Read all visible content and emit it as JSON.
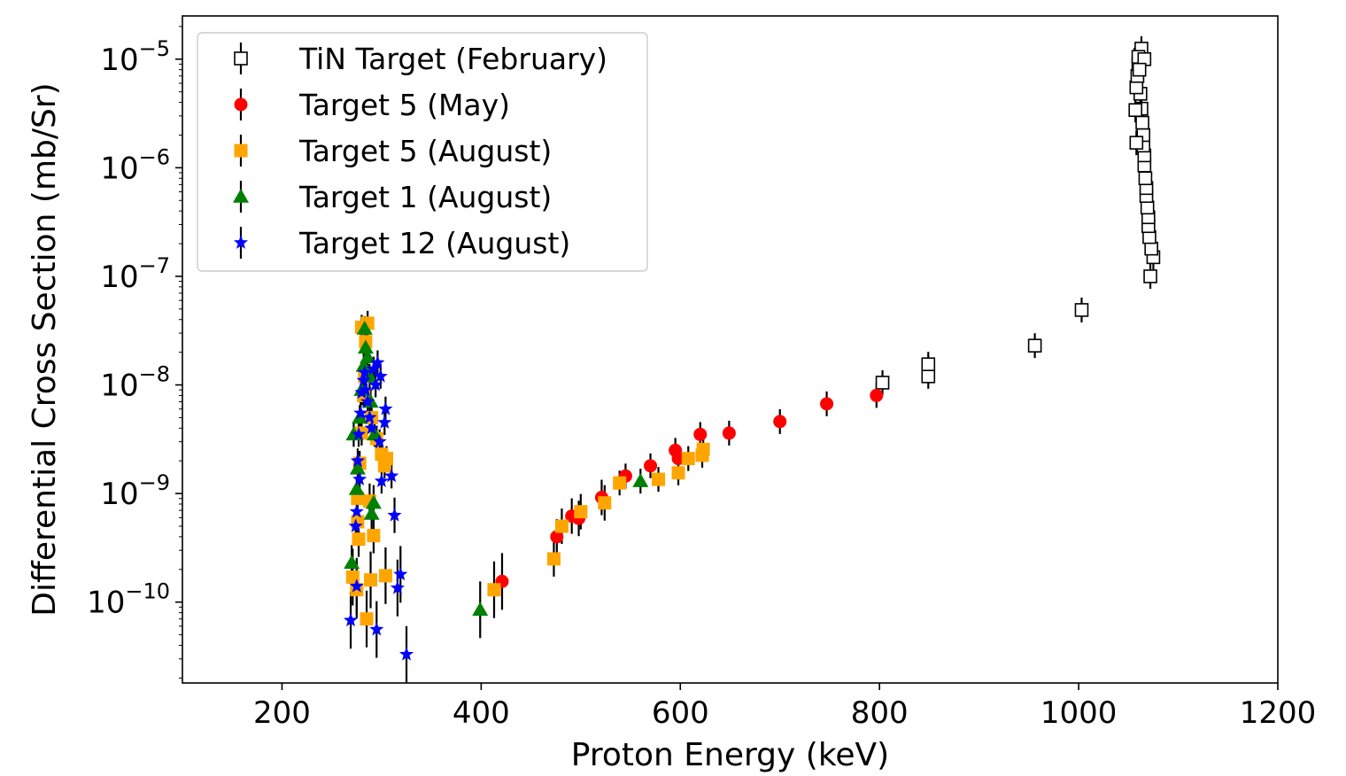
{
  "chart_data": {
    "type": "scatter",
    "xlabel": "Proton Energy (keV)",
    "ylabel": "Differential Cross Section (mb/Sr)",
    "xlim": [
      100,
      1200
    ],
    "ylim": [
      1.8e-11,
      2.5e-05
    ],
    "yscale": "log",
    "x_ticks": [
      200,
      400,
      600,
      800,
      1000,
      1200
    ],
    "x_tick_labels": [
      "200",
      "400",
      "600",
      "800",
      "1000",
      "1200"
    ],
    "y_ticks": [
      1e-10,
      1e-09,
      1e-08,
      1e-07,
      1e-06,
      1e-05
    ],
    "y_tick_labels": [
      {
        "base": "10",
        "exp": "−10"
      },
      {
        "base": "10",
        "exp": "−9"
      },
      {
        "base": "10",
        "exp": "−8"
      },
      {
        "base": "10",
        "exp": "−7"
      },
      {
        "base": "10",
        "exp": "−6"
      },
      {
        "base": "10",
        "exp": "−5"
      }
    ],
    "grid": false,
    "legend_position": "top-left",
    "series": [
      {
        "name": "TiN Target (February)",
        "marker": "square-open",
        "color": "#000000",
        "points": [
          [
            803,
            1.05e-08
          ],
          [
            849,
            1.2e-08
          ],
          [
            849,
            1.55e-08
          ],
          [
            956,
            2.3e-08
          ],
          [
            1003,
            4.9e-08
          ],
          [
            1072,
            1e-07
          ],
          [
            1075,
            1.5e-07
          ],
          [
            1073,
            1.8e-07
          ],
          [
            1071,
            2.3e-07
          ],
          [
            1070,
            2.9e-07
          ],
          [
            1070,
            3.5e-07
          ],
          [
            1069,
            4.3e-07
          ],
          [
            1068,
            5.5e-07
          ],
          [
            1068,
            6.5e-07
          ],
          [
            1067,
            8e-07
          ],
          [
            1066,
            1.05e-06
          ],
          [
            1066,
            1.3e-06
          ],
          [
            1065,
            1.6e-06
          ],
          [
            1065,
            2e-06
          ],
          [
            1064,
            2.6e-06
          ],
          [
            1063,
            3.5e-06
          ],
          [
            1062,
            4.8e-06
          ],
          [
            1058,
            1.7e-06
          ],
          [
            1057,
            3.4e-06
          ],
          [
            1058,
            5.5e-06
          ],
          [
            1059,
            7e-06
          ],
          [
            1060,
            9e-06
          ],
          [
            1062,
            1.1e-05
          ],
          [
            1063,
            1.25e-05
          ],
          [
            1060,
            1.05e-05
          ],
          [
            1066,
            1e-05
          ],
          [
            1061,
            8e-06
          ]
        ]
      },
      {
        "name": "Target 5 (May)",
        "marker": "circle",
        "color": "#ff0000",
        "points": [
          [
            421,
            1.55e-10
          ],
          [
            476,
            4e-10
          ],
          [
            491,
            6.2e-10
          ],
          [
            498,
            5.9e-10
          ],
          [
            521,
            9.2e-10
          ],
          [
            545,
            1.45e-09
          ],
          [
            570,
            1.8e-09
          ],
          [
            595,
            2.5e-09
          ],
          [
            598,
            2.1e-09
          ],
          [
            620,
            3.5e-09
          ],
          [
            649,
            3.6e-09
          ],
          [
            700,
            4.6e-09
          ],
          [
            747,
            6.7e-09
          ],
          [
            797,
            8e-09
          ]
        ]
      },
      {
        "name": "Target 5 (August)",
        "marker": "square",
        "color": "#ffa500",
        "points": [
          [
            271,
            1.7e-10
          ],
          [
            275,
            1.3e-10
          ],
          [
            276,
            9e-10
          ],
          [
            277,
            3.8e-10
          ],
          [
            276,
            5.5e-10
          ],
          [
            285,
            7e-11
          ],
          [
            289,
            1.6e-10
          ],
          [
            292,
            4.1e-10
          ],
          [
            304,
            1.75e-10
          ],
          [
            305,
            2.1e-09
          ],
          [
            278,
            1.9e-09
          ],
          [
            280,
            3.6e-09
          ],
          [
            282,
            8e-09
          ],
          [
            283,
            1.2e-08
          ],
          [
            284,
            2.5e-08
          ],
          [
            286,
            3.7e-08
          ],
          [
            280,
            3.4e-08
          ],
          [
            288,
            8.5e-10
          ],
          [
            290,
            5e-09
          ],
          [
            295,
            3.2e-09
          ],
          [
            300,
            2.3e-09
          ],
          [
            303,
            1.8e-09
          ],
          [
            413,
            1.3e-10
          ],
          [
            473,
            2.5e-10
          ],
          [
            481,
            5e-10
          ],
          [
            500,
            6.8e-10
          ],
          [
            524,
            8.2e-10
          ],
          [
            539,
            1.25e-09
          ],
          [
            578,
            1.35e-09
          ],
          [
            598,
            1.55e-09
          ],
          [
            608,
            2.1e-09
          ],
          [
            622,
            2.25e-09
          ],
          [
            623,
            2.55e-09
          ]
        ]
      },
      {
        "name": "Target 1 (August)",
        "marker": "triangle",
        "color": "#008000",
        "points": [
          [
            270,
            2.3e-10
          ],
          [
            272,
            3.5e-09
          ],
          [
            275,
            1.1e-09
          ],
          [
            276,
            1.7e-09
          ],
          [
            278,
            5e-09
          ],
          [
            280,
            9e-09
          ],
          [
            282,
            1.5e-08
          ],
          [
            284,
            2.2e-08
          ],
          [
            283,
            3.3e-08
          ],
          [
            286,
            1.8e-08
          ],
          [
            288,
            1.2e-08
          ],
          [
            289,
            7e-09
          ],
          [
            290,
            6.5e-10
          ],
          [
            292,
            8.2e-10
          ],
          [
            293,
            3.5e-09
          ],
          [
            399,
            8.5e-11
          ],
          [
            560,
            1.3e-09
          ]
        ]
      },
      {
        "name": "Target 12 (August)",
        "marker": "star",
        "color": "#0000ff",
        "points": [
          [
            269,
            6.8e-11
          ],
          [
            275,
            1.4e-10
          ],
          [
            274,
            5e-10
          ],
          [
            275,
            6.8e-10
          ],
          [
            276,
            2e-09
          ],
          [
            278,
            1.35e-09
          ],
          [
            277,
            3.5e-09
          ],
          [
            279,
            5.5e-09
          ],
          [
            280,
            8.5e-09
          ],
          [
            282,
            1.1e-08
          ],
          [
            283,
            1.3e-08
          ],
          [
            284,
            9e-09
          ],
          [
            286,
            7e-09
          ],
          [
            288,
            5e-09
          ],
          [
            290,
            4e-09
          ],
          [
            292,
            1.4e-08
          ],
          [
            294,
            1e-08
          ],
          [
            295,
            5.6e-11
          ],
          [
            298,
            3e-09
          ],
          [
            300,
            1.3e-09
          ],
          [
            303,
            4.5e-09
          ],
          [
            304,
            6e-09
          ],
          [
            310,
            1.45e-09
          ],
          [
            313,
            6.3e-10
          ],
          [
            316,
            1.35e-10
          ],
          [
            319,
            1.8e-10
          ],
          [
            325,
            3.3e-11
          ],
          [
            296,
            1.6e-08
          ],
          [
            299,
            1.2e-08
          ]
        ]
      }
    ]
  }
}
